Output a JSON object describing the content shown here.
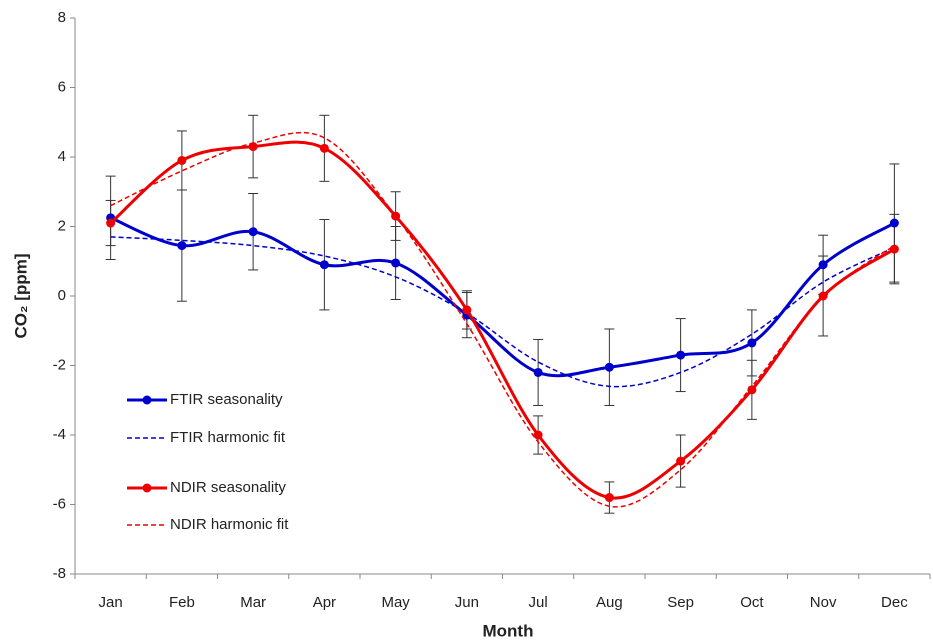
{
  "chart_data": {
    "type": "line",
    "x_label": "Month",
    "y_label": "CO₂ [ppm]",
    "categories": [
      "Jan",
      "Feb",
      "Mar",
      "Apr",
      "May",
      "Jun",
      "Jul",
      "Aug",
      "Sep",
      "Oct",
      "Nov",
      "Dec"
    ],
    "ylim": [
      -8,
      8
    ],
    "yticks": [
      -8,
      -6,
      -4,
      -2,
      0,
      2,
      4,
      6,
      8
    ],
    "grid": false,
    "legend_position": "lower left",
    "series": [
      {
        "name": "FTIR seasonality",
        "color": "#0000cc",
        "style": "solid",
        "markers": true,
        "values": [
          2.25,
          1.45,
          1.85,
          0.9,
          0.95,
          -0.55,
          -2.2,
          -2.05,
          -1.7,
          -1.35,
          0.9,
          2.1
        ],
        "errors": [
          1.2,
          1.6,
          1.1,
          1.3,
          1.05,
          0.65,
          0.95,
          1.1,
          1.05,
          0.95,
          0.85,
          1.7
        ]
      },
      {
        "name": "FTIR harmonic fit",
        "color": "#0000cc",
        "style": "dashed",
        "markers": false,
        "values": [
          1.7,
          1.6,
          1.45,
          1.15,
          0.55,
          -0.5,
          -1.9,
          -2.6,
          -2.2,
          -1.1,
          0.4,
          1.4
        ]
      },
      {
        "name": "NDIR seasonality",
        "color": "#ee0000",
        "style": "solid",
        "markers": true,
        "values": [
          2.1,
          3.9,
          4.3,
          4.25,
          2.3,
          -0.4,
          -4.0,
          -5.8,
          -4.75,
          -2.7,
          0.0,
          1.35
        ],
        "errors": [
          0.65,
          0.85,
          0.9,
          0.95,
          0.7,
          0.55,
          0.55,
          0.45,
          0.75,
          0.85,
          1.15,
          1.0
        ]
      },
      {
        "name": "NDIR harmonic fit",
        "color": "#ee0000",
        "style": "dashed",
        "markers": false,
        "values": [
          2.6,
          3.6,
          4.4,
          4.55,
          2.3,
          -0.8,
          -4.2,
          -6.05,
          -5.0,
          -2.6,
          0.0,
          1.45
        ]
      }
    ]
  }
}
